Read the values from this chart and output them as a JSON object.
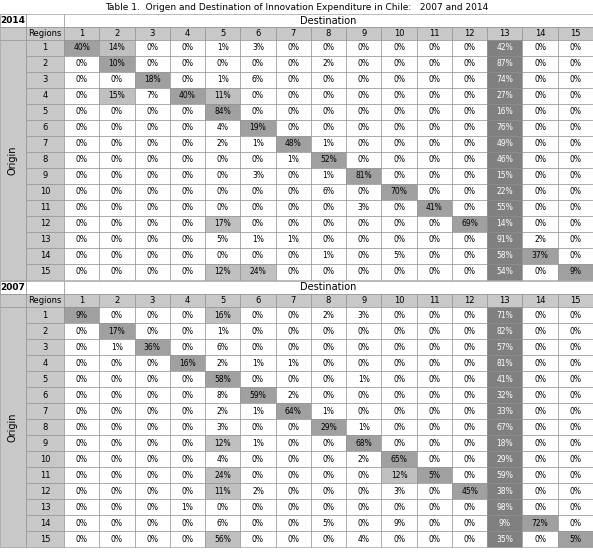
{
  "title": "Table 1.  Origen and Destination of Innovation Expenditure in Chile:   2007 and 2014",
  "year_2014": {
    "label": "2014",
    "data": [
      [
        40,
        14,
        0,
        0,
        1,
        3,
        0,
        0,
        0,
        0,
        0,
        0,
        42,
        0,
        0
      ],
      [
        0,
        10,
        0,
        0,
        0,
        0,
        0,
        2,
        0,
        0,
        0,
        0,
        87,
        0,
        0
      ],
      [
        0,
        0,
        18,
        0,
        1,
        6,
        0,
        0,
        0,
        0,
        0,
        0,
        74,
        0,
        0
      ],
      [
        0,
        15,
        7,
        40,
        11,
        0,
        0,
        0,
        0,
        0,
        0,
        0,
        27,
        0,
        0
      ],
      [
        0,
        0,
        0,
        0,
        84,
        0,
        0,
        0,
        0,
        0,
        0,
        0,
        16,
        0,
        0
      ],
      [
        0,
        0,
        0,
        0,
        4,
        19,
        0,
        0,
        0,
        0,
        0,
        0,
        76,
        0,
        0
      ],
      [
        0,
        0,
        0,
        0,
        2,
        1,
        48,
        1,
        0,
        0,
        0,
        0,
        49,
        0,
        0
      ],
      [
        0,
        0,
        0,
        0,
        0,
        0,
        1,
        52,
        0,
        0,
        0,
        0,
        46,
        0,
        0
      ],
      [
        0,
        0,
        0,
        0,
        0,
        3,
        0,
        1,
        81,
        0,
        0,
        0,
        15,
        0,
        0
      ],
      [
        0,
        0,
        0,
        0,
        0,
        0,
        0,
        6,
        0,
        70,
        0,
        0,
        22,
        0,
        0
      ],
      [
        0,
        0,
        0,
        0,
        0,
        0,
        0,
        0,
        3,
        0,
        41,
        0,
        55,
        0,
        0
      ],
      [
        0,
        0,
        0,
        0,
        17,
        0,
        0,
        0,
        0,
        0,
        0,
        69,
        14,
        0,
        0
      ],
      [
        0,
        0,
        0,
        0,
        5,
        1,
        1,
        0,
        0,
        0,
        0,
        0,
        91,
        2,
        0
      ],
      [
        0,
        0,
        0,
        0,
        0,
        0,
        0,
        1,
        0,
        5,
        0,
        0,
        58,
        37,
        0
      ],
      [
        0,
        0,
        0,
        0,
        12,
        24,
        0,
        0,
        0,
        0,
        0,
        0,
        54,
        0,
        9
      ]
    ]
  },
  "year_2007": {
    "label": "2007",
    "data": [
      [
        9,
        0,
        0,
        0,
        16,
        0,
        0,
        2,
        3,
        0,
        0,
        0,
        71,
        0,
        0
      ],
      [
        0,
        17,
        0,
        0,
        1,
        0,
        0,
        0,
        0,
        0,
        0,
        0,
        82,
        0,
        0
      ],
      [
        0,
        1,
        36,
        0,
        6,
        0,
        0,
        0,
        0,
        0,
        0,
        0,
        57,
        0,
        0
      ],
      [
        0,
        0,
        0,
        16,
        2,
        1,
        1,
        0,
        0,
        0,
        0,
        0,
        81,
        0,
        0
      ],
      [
        0,
        0,
        0,
        0,
        58,
        0,
        0,
        0,
        1,
        0,
        0,
        0,
        41,
        0,
        0
      ],
      [
        0,
        0,
        0,
        0,
        8,
        59,
        2,
        0,
        0,
        0,
        0,
        0,
        32,
        0,
        0
      ],
      [
        0,
        0,
        0,
        0,
        2,
        1,
        64,
        1,
        0,
        0,
        0,
        0,
        33,
        0,
        0
      ],
      [
        0,
        0,
        0,
        0,
        3,
        0,
        0,
        29,
        1,
        0,
        0,
        0,
        67,
        0,
        0
      ],
      [
        0,
        0,
        0,
        0,
        12,
        1,
        0,
        0,
        68,
        0,
        0,
        0,
        18,
        0,
        0
      ],
      [
        0,
        0,
        0,
        0,
        4,
        0,
        0,
        0,
        2,
        65,
        0,
        0,
        29,
        0,
        0
      ],
      [
        0,
        0,
        0,
        0,
        24,
        0,
        0,
        0,
        0,
        12,
        5,
        0,
        59,
        0,
        0
      ],
      [
        0,
        0,
        0,
        0,
        11,
        2,
        0,
        0,
        0,
        3,
        0,
        45,
        38,
        0,
        0
      ],
      [
        0,
        0,
        0,
        1,
        0,
        0,
        0,
        0,
        0,
        0,
        0,
        0,
        98,
        0,
        0
      ],
      [
        0,
        0,
        0,
        0,
        6,
        0,
        0,
        5,
        0,
        9,
        0,
        0,
        9,
        72,
        0
      ],
      [
        0,
        0,
        0,
        0,
        56,
        0,
        0,
        0,
        4,
        0,
        0,
        0,
        35,
        0,
        5
      ]
    ]
  },
  "col_labels": [
    "1",
    "2",
    "3",
    "4",
    "5",
    "6",
    "7",
    "8",
    "9",
    "10",
    "11",
    "12",
    "13",
    "14",
    "15"
  ],
  "row_labels": [
    "1",
    "2",
    "3",
    "4",
    "5",
    "6",
    "7",
    "8",
    "9",
    "10",
    "11",
    "12",
    "13",
    "14",
    "15"
  ],
  "color_white": "#ffffff",
  "color_black": "#000000",
  "color_header_bg": "#c8c8c8",
  "color_year_bg": "#c8c8c8",
  "color_origin_bg": "#c8c8c8",
  "color_regions_bg": "#c8c8c8",
  "color_diag": "#a0a0a0",
  "color_high": "#c0c0c0",
  "color_col13": "#808080",
  "color_col13_text": "#ffffff",
  "color_border": "#888888"
}
